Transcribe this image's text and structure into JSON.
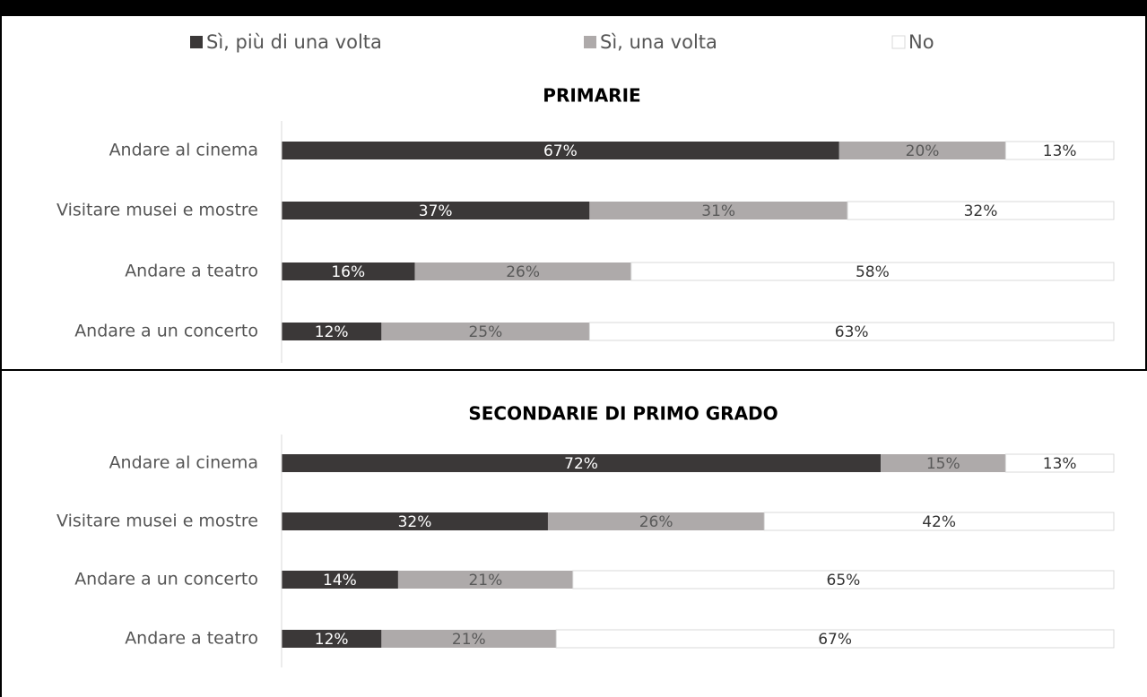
{
  "chart_data": [
    {
      "type": "bar",
      "orientation": "horizontal",
      "stacked": true,
      "title": "PRIMARIE",
      "categories": [
        "Andare al cinema",
        "Visitare musei e mostre",
        "Andare a teatro",
        "Andare a un concerto"
      ],
      "xlim": [
        0,
        100
      ],
      "series": [
        {
          "name": "Sì, più di una volta",
          "color": "#3b3838",
          "values": [
            67,
            37,
            16,
            12
          ],
          "value_labels": [
            "67%",
            "37%",
            "16%",
            "12%"
          ]
        },
        {
          "name": "Sì, una volta",
          "color": "#aeaaaa",
          "values": [
            20,
            31,
            26,
            25
          ],
          "value_labels": [
            "20%",
            "31%",
            "26%",
            "25%"
          ]
        },
        {
          "name": "No",
          "color": "#ffffff",
          "values": [
            13,
            32,
            58,
            63
          ],
          "value_labels": [
            "13%",
            "32%",
            "58%",
            "63%"
          ]
        }
      ]
    },
    {
      "type": "bar",
      "orientation": "horizontal",
      "stacked": true,
      "title": "SECONDARIE DI PRIMO GRADO",
      "categories": [
        "Andare al cinema",
        "Visitare musei e mostre",
        "Andare a un concerto",
        "Andare a teatro"
      ],
      "xlim": [
        0,
        100
      ],
      "series": [
        {
          "color": "#3b3838",
          "values": [
            72,
            32,
            14,
            12
          ],
          "value_labels": [
            "72%",
            "32%",
            "14%",
            "12%"
          ]
        },
        {
          "color": "#aeaaaa",
          "values": [
            15,
            26,
            21,
            21
          ],
          "value_labels": [
            "15%",
            "26%",
            "21%",
            "21%"
          ]
        },
        {
          "color": "#ffffff",
          "values": [
            13,
            42,
            65,
            67
          ],
          "value_labels": [
            "13%",
            "42%",
            "65%",
            "67%"
          ]
        }
      ]
    }
  ]
}
